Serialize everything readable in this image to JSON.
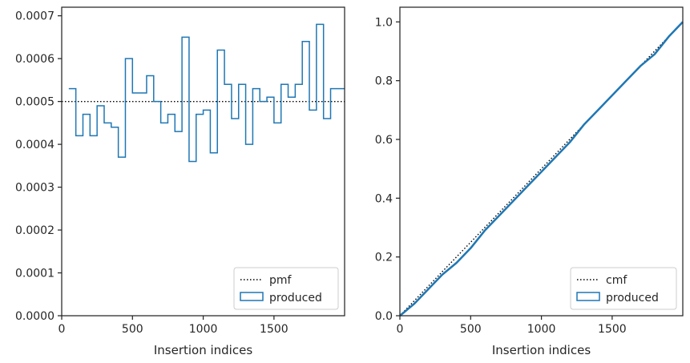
{
  "chart_data": [
    {
      "type": "step",
      "xlabel": "Insertion indices",
      "ylabel": "",
      "xlim": [
        0,
        1999
      ],
      "ylim": [
        0,
        0.00072
      ],
      "xticks": [
        0,
        500,
        1000,
        1500
      ],
      "xtick_labels": [
        "0",
        "500",
        "1000",
        "1500"
      ],
      "yticks": [
        0,
        0.0001,
        0.0002,
        0.0003,
        0.0004,
        0.0005,
        0.0006,
        0.0007
      ],
      "ytick_labels": [
        "0.0000",
        "0.0001",
        "0.0002",
        "0.0003",
        "0.0004",
        "0.0005",
        "0.0006",
        "0.0007"
      ],
      "grid": false,
      "legend_position": "lower-right",
      "reference_line": {
        "name": "pmf",
        "style": "dotted",
        "color": "#000000",
        "value": 0.0005
      },
      "series": [
        {
          "name": "produced",
          "color": "#1f77b4",
          "bin_edges": [
            50,
            100,
            150,
            200,
            250,
            300,
            350,
            400,
            450,
            500,
            550,
            600,
            650,
            700,
            750,
            800,
            850,
            900,
            950,
            1000,
            1050,
            1100,
            1150,
            1200,
            1250,
            1300,
            1350,
            1400,
            1450,
            1500,
            1550,
            1600,
            1650,
            1700,
            1750,
            1800,
            1850,
            1900,
            1950,
            1999
          ],
          "values": [
            0.00053,
            0.00042,
            0.00047,
            0.00042,
            0.00049,
            0.00045,
            0.00044,
            0.00037,
            0.0006,
            0.00052,
            0.00052,
            0.00056,
            0.0005,
            0.00045,
            0.00047,
            0.00043,
            0.00065,
            0.00036,
            0.00047,
            0.00048,
            0.00038,
            0.00062,
            0.00054,
            0.00046,
            0.00054,
            0.0004,
            0.00053,
            0.0005,
            0.00051,
            0.00045,
            0.00054,
            0.00051,
            0.00054,
            0.00064,
            0.00048,
            0.00068,
            0.00046,
            0.00053,
            0.00053
          ]
        }
      ]
    },
    {
      "type": "line",
      "xlabel": "Insertion indices",
      "ylabel": "",
      "xlim": [
        0,
        1999
      ],
      "ylim": [
        0,
        1.05
      ],
      "xticks": [
        0,
        500,
        1000,
        1500
      ],
      "xtick_labels": [
        "0",
        "500",
        "1000",
        "1500"
      ],
      "yticks": [
        0,
        0.2,
        0.4,
        0.6,
        0.8,
        1.0
      ],
      "ytick_labels": [
        "0.0",
        "0.2",
        "0.4",
        "0.6",
        "0.8",
        "1.0"
      ],
      "grid": false,
      "legend_position": "lower-right",
      "reference_line": {
        "name": "cmf",
        "style": "dotted",
        "color": "#000000",
        "x": [
          0,
          1999
        ],
        "y": [
          0,
          1.0
        ]
      },
      "series": [
        {
          "name": "produced",
          "color": "#1f77b4",
          "x": [
            0,
            100,
            200,
            300,
            400,
            500,
            600,
            700,
            800,
            900,
            1000,
            1100,
            1200,
            1300,
            1400,
            1500,
            1600,
            1700,
            1800,
            1900,
            1999
          ],
          "y": [
            0,
            0.04,
            0.09,
            0.14,
            0.18,
            0.23,
            0.29,
            0.34,
            0.39,
            0.44,
            0.49,
            0.54,
            0.59,
            0.65,
            0.7,
            0.75,
            0.8,
            0.85,
            0.89,
            0.95,
            1.0
          ]
        }
      ]
    }
  ]
}
